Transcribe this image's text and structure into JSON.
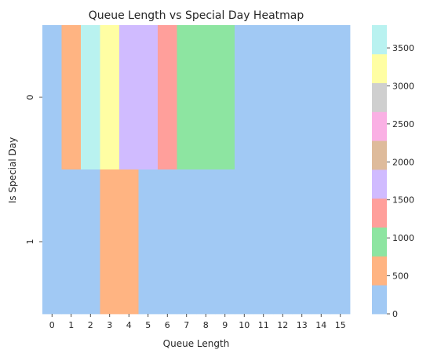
{
  "chart_data": {
    "type": "heatmap",
    "title": "Queue Length vs Special Day Heatmap",
    "xlabel": "Queue Length",
    "ylabel": "Is Special Day",
    "x": [
      "0",
      "1",
      "2",
      "3",
      "4",
      "5",
      "6",
      "7",
      "8",
      "9",
      "10",
      "11",
      "12",
      "13",
      "14",
      "15"
    ],
    "y": [
      "0",
      "1"
    ],
    "values": [
      [
        0,
        650,
        3750,
        3250,
        1750,
        1750,
        1250,
        1000,
        1000,
        1000,
        0,
        0,
        0,
        0,
        0,
        0
      ],
      [
        0,
        0,
        0,
        500,
        500,
        0,
        0,
        0,
        0,
        0,
        0,
        0,
        0,
        0,
        0,
        0
      ]
    ],
    "colorbar": {
      "range": [
        0,
        3800
      ],
      "ticks": [
        0,
        500,
        1000,
        1500,
        2000,
        2500,
        3000,
        3500
      ],
      "palette": [
        "#a1c9f4",
        "#ffb482",
        "#8de5a1",
        "#ff9f9b",
        "#d0bbff",
        "#debb9b",
        "#fab0e4",
        "#cfcfcf",
        "#fffea3",
        "#b9f2f0"
      ]
    }
  }
}
